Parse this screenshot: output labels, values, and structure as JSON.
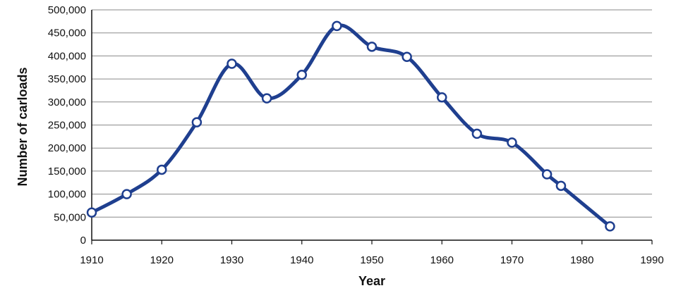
{
  "chart_data": {
    "type": "line",
    "title": "",
    "xlabel": "Year",
    "ylabel": "Number of carloads",
    "xlim": [
      1910,
      1990
    ],
    "ylim": [
      0,
      500000
    ],
    "x_ticks": [
      "1910",
      "1920",
      "1930",
      "1940",
      "1950",
      "1960",
      "1970",
      "1980",
      "1990"
    ],
    "y_ticks": [
      "0",
      "50,000",
      "100,000",
      "150,000",
      "200,000",
      "250,000",
      "300,000",
      "350,000",
      "400,000",
      "450,000",
      "500,000"
    ],
    "grid": true,
    "series": [
      {
        "x": [
          1910,
          1915,
          1920,
          1925,
          1930,
          1935,
          1940,
          1945,
          1950,
          1955,
          1960,
          1965,
          1970,
          1975,
          1977,
          1984
        ],
        "y": [
          60000,
          100000,
          153000,
          256000,
          383000,
          308000,
          359000,
          465000,
          420000,
          398000,
          310000,
          231000,
          212000,
          143000,
          118000,
          30000
        ]
      }
    ],
    "colors": {
      "line": "#1f3f8f",
      "marker_fill": "#ffffff"
    }
  }
}
